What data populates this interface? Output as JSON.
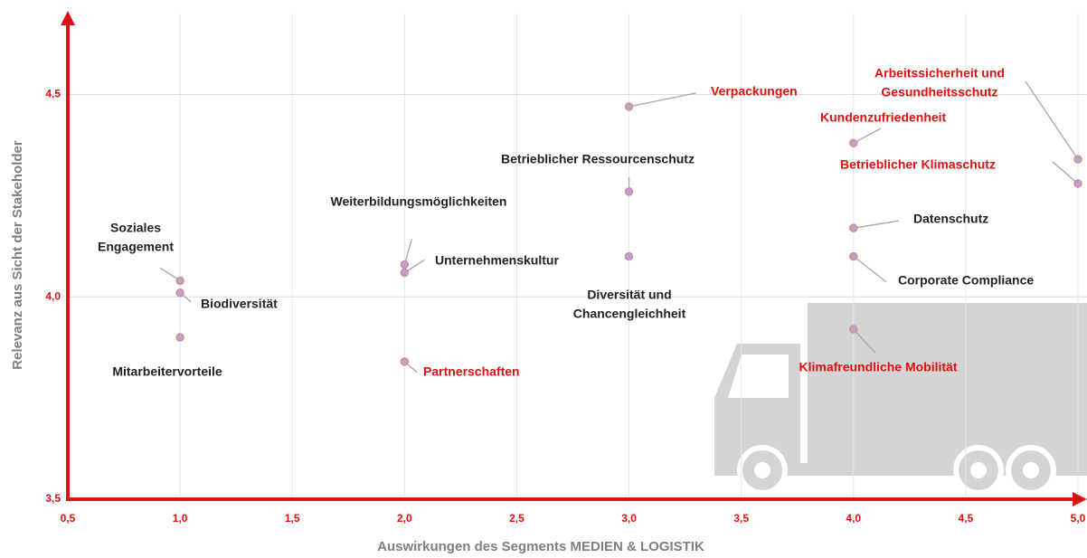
{
  "chart_data": {
    "type": "scatter",
    "x_label": "Auswirkungen des Segments MEDIEN & LOGISTIK",
    "y_label": "Relevanz aus Sicht der Stakeholder",
    "xlim": [
      0.5,
      5.0
    ],
    "ylim": [
      3.5,
      4.7
    ],
    "xticks": [
      {
        "value": 0.5,
        "label": "0,5"
      },
      {
        "value": 1.0,
        "label": "1,0"
      },
      {
        "value": 1.5,
        "label": "1,5"
      },
      {
        "value": 2.0,
        "label": "2,0"
      },
      {
        "value": 2.5,
        "label": "2,5"
      },
      {
        "value": 3.0,
        "label": "3,0"
      },
      {
        "value": 3.5,
        "label": "3,5"
      },
      {
        "value": 4.0,
        "label": "4,0"
      },
      {
        "value": 4.5,
        "label": "4,5"
      },
      {
        "value": 5.0,
        "label": "5,0"
      }
    ],
    "yticks": [
      {
        "value": 3.5,
        "label": "3,5"
      },
      {
        "value": 4.0,
        "label": "4,0"
      },
      {
        "value": 4.5,
        "label": "4,5"
      }
    ],
    "grid": true,
    "axis_color": "#e01010",
    "point_fill": "#a9a9dc",
    "point_stroke": "#e08a8a",
    "points": [
      {
        "label": [
          "Soziales",
          "Engagement"
        ],
        "x": 1.0,
        "y": 4.04,
        "label_color": "#222222"
      },
      {
        "label": [
          "Biodiversität"
        ],
        "x": 1.0,
        "y": 4.01,
        "label_color": "#222222"
      },
      {
        "label": [
          "Mitarbeitervorteile"
        ],
        "x": 1.0,
        "y": 3.9,
        "label_color": "#222222"
      },
      {
        "label": [
          "Weiterbildungsmöglichkeiten"
        ],
        "x": 2.0,
        "y": 4.08,
        "label_color": "#222222"
      },
      {
        "label": [
          "Unternehmenskultur"
        ],
        "x": 2.0,
        "y": 4.06,
        "label_color": "#222222"
      },
      {
        "label": [
          "Partnerschaften"
        ],
        "x": 2.0,
        "y": 3.84,
        "label_color": "#e01010"
      },
      {
        "label": [
          "Verpackungen"
        ],
        "x": 3.0,
        "y": 4.47,
        "label_color": "#e01010"
      },
      {
        "label": [
          "Betrieblicher Ressourcenschutz"
        ],
        "x": 3.0,
        "y": 4.26,
        "label_color": "#222222"
      },
      {
        "label": [
          "Diversität und",
          "Chancengleichheit"
        ],
        "x": 3.0,
        "y": 4.1,
        "label_color": "#222222"
      },
      {
        "label": [
          "Kundenzufriedenheit"
        ],
        "x": 4.0,
        "y": 4.38,
        "label_color": "#e01010"
      },
      {
        "label": [
          "Datenschutz"
        ],
        "x": 4.0,
        "y": 4.17,
        "label_color": "#222222"
      },
      {
        "label": [
          "Corporate Compliance"
        ],
        "x": 4.0,
        "y": 4.1,
        "label_color": "#222222"
      },
      {
        "label": [
          "Klimafreundliche Mobilität"
        ],
        "x": 4.0,
        "y": 3.92,
        "label_color": "#e01010"
      },
      {
        "label": [
          "Arbeitssicherheit und",
          "Gesundheitsschutz"
        ],
        "x": 5.0,
        "y": 4.34,
        "label_color": "#e01010"
      },
      {
        "label": [
          "Betrieblicher Klimaschutz"
        ],
        "x": 5.0,
        "y": 4.28,
        "label_color": "#e01010"
      }
    ]
  }
}
